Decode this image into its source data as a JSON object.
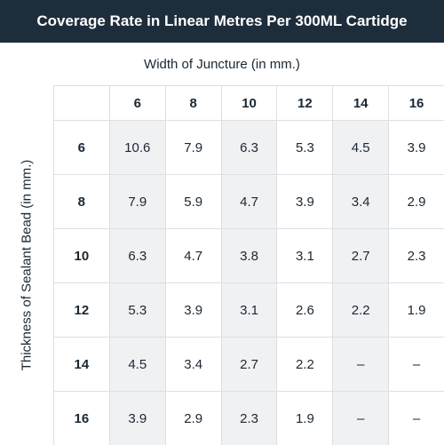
{
  "title": "Coverage Rate in Linear Metres Per 300ML Cartidge",
  "column_axis_label": "Width of Juncture (in mm.)",
  "row_axis_label": "Thickness of Sealant Bead (in mm.)",
  "chart_data": {
    "type": "table",
    "columns": [
      "6",
      "8",
      "10",
      "12",
      "14",
      "16"
    ],
    "rows": [
      {
        "label": "6",
        "values": [
          "10.6",
          "7.9",
          "6.3",
          "5.3",
          "4.5",
          "3.9"
        ]
      },
      {
        "label": "8",
        "values": [
          "7.9",
          "5.9",
          "4.7",
          "3.9",
          "3.4",
          "2.9"
        ]
      },
      {
        "label": "10",
        "values": [
          "6.3",
          "4.7",
          "3.8",
          "3.1",
          "2.7",
          "2.3"
        ]
      },
      {
        "label": "12",
        "values": [
          "5.3",
          "3.9",
          "3.1",
          "2.6",
          "2.2",
          "1.9"
        ]
      },
      {
        "label": "14",
        "values": [
          "4.5",
          "3.4",
          "2.7",
          "2.2",
          "–",
          "–"
        ]
      },
      {
        "label": "16",
        "values": [
          "3.9",
          "2.9",
          "2.3",
          "1.9",
          "–",
          "–"
        ]
      }
    ]
  },
  "colors": {
    "header_bg": "#1e2d3b",
    "shaded_column_bg": "#f0f1f3",
    "grid_line": "#dcdfe3"
  }
}
